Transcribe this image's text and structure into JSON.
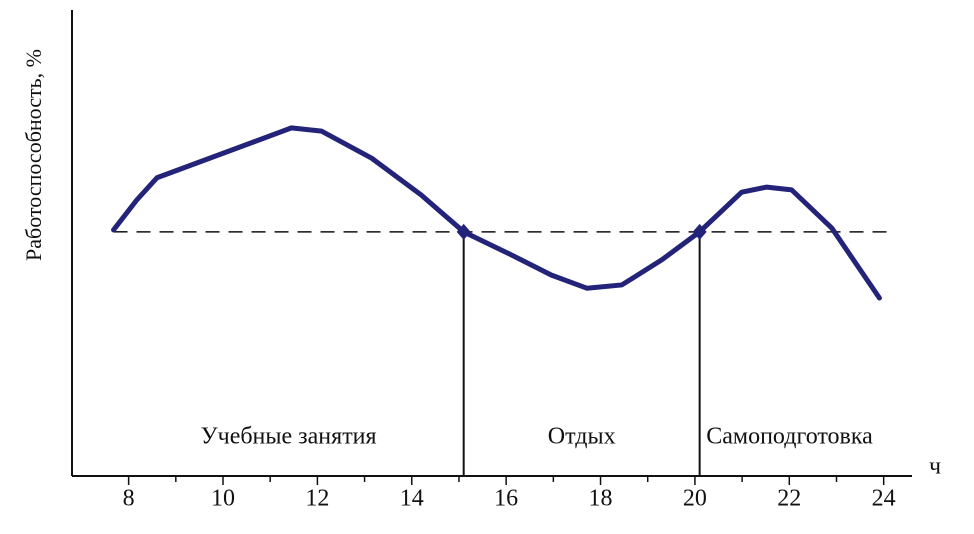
{
  "chart_data": {
    "type": "line",
    "y_label": "Работоспособность, %",
    "x_label": "ч",
    "x": [
      7.68,
      8.17,
      8.6,
      11.45,
      12.09,
      13.15,
      14.2,
      15.1,
      16.12,
      16.96,
      17.71,
      18.45,
      19.3,
      20.1,
      20.99,
      21.52,
      22.05,
      22.9,
      23.91
    ],
    "series": [
      {
        "color": "#23237a",
        "values": [
          52.8,
          59.2,
          64.0,
          74.7,
          74.0,
          68.2,
          60.3,
          52.4,
          47.4,
          43.1,
          40.3,
          41.0,
          46.4,
          52.4,
          60.9,
          62.0,
          61.4,
          53.2,
          38.2
        ]
      }
    ],
    "xlim": [
      6.8,
      24.6
    ],
    "xticks": [
      8,
      10,
      12,
      14,
      16,
      18,
      20,
      22,
      24
    ],
    "xminorticks": [
      9,
      11,
      13,
      15,
      17,
      19,
      21,
      23
    ],
    "ylim": [
      0,
      100
    ],
    "reference_line": 52.4,
    "boundaries": [
      15.1,
      20.1
    ],
    "regions": [
      "Учебные занятия",
      "Отдых",
      "Самоподготовка"
    ]
  }
}
